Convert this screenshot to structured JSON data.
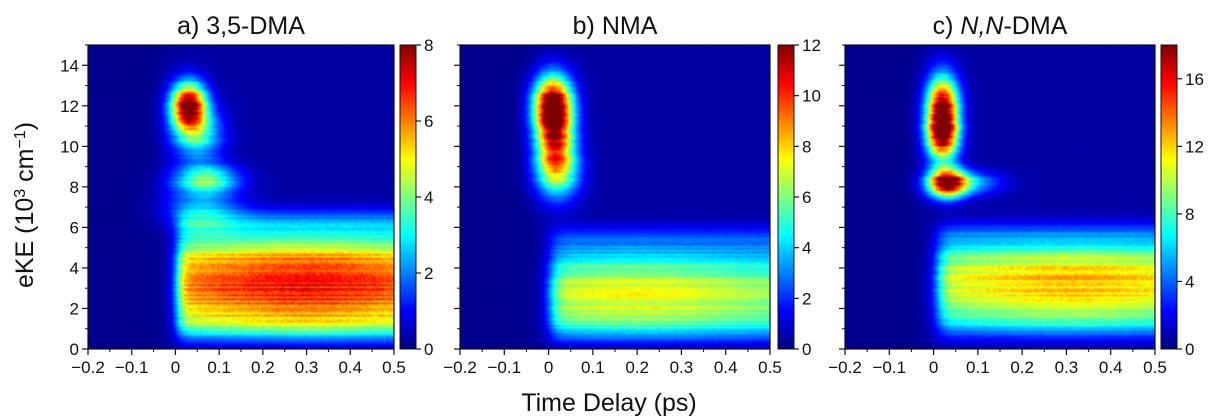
{
  "chart_data": {
    "type": "heatmap",
    "shared_xlabel": "Time Delay (ps)",
    "shared_ylabel": "eKE (10³ cm⁻¹)",
    "colormap": [
      "#00007f",
      "#0000ff",
      "#007fff",
      "#00ffff",
      "#7fff7f",
      "#ffff00",
      "#ff7f00",
      "#ff0000",
      "#7f0000"
    ],
    "panels": [
      {
        "title_prefix": "a) ",
        "title_italic": "",
        "title_suffix": "3,5-DMA",
        "xlim": [
          -0.2,
          0.5
        ],
        "ylim": [
          0,
          15
        ],
        "x_ticks": [
          -0.2,
          -0.1,
          0,
          0.1,
          0.2,
          0.3,
          0.4,
          0.5
        ],
        "x_tick_labels": [
          "−0.2",
          "−0.1",
          "0",
          "0.1",
          "0.2",
          "0.3",
          "0.4",
          "0.5"
        ],
        "y_ticks": [
          0,
          2,
          4,
          6,
          8,
          10,
          12,
          14
        ],
        "y_tick_labels": [
          "0",
          "2",
          "4",
          "6",
          "8",
          "10",
          "12",
          "14"
        ],
        "colorbar_range": [
          0,
          8
        ],
        "colorbar_ticks": [
          0,
          2,
          4,
          6,
          8
        ],
        "colorbar_tick_labels": [
          "0",
          "2",
          "4",
          "6",
          "8"
        ],
        "features": [
          {
            "x": 0.03,
            "y": 12.0,
            "sx": 0.028,
            "sy": 0.8,
            "amp": 7.8
          },
          {
            "x": 0.05,
            "y": 10.6,
            "sx": 0.04,
            "sy": 0.9,
            "amp": 3.0
          },
          {
            "x": 0.07,
            "y": 8.4,
            "sx": 0.05,
            "sy": 0.5,
            "amp": 3.5
          },
          {
            "x": 0.06,
            "y": 7.0,
            "sx": 0.06,
            "sy": 0.8,
            "amp": 1.8
          }
        ],
        "band": {
          "onset": 0.005,
          "rise": 0.025,
          "level": 6.6,
          "peak_time": 0.3,
          "low_eke": 0.6,
          "high_eke": 5.6,
          "center_eke": 3.2
        }
      },
      {
        "title_prefix": "b) ",
        "title_italic": "",
        "title_suffix": "NMA",
        "xlim": [
          -0.2,
          0.5
        ],
        "ylim": [
          0,
          15
        ],
        "x_ticks": [
          -0.2,
          -0.1,
          0,
          0.1,
          0.2,
          0.3,
          0.4,
          0.5
        ],
        "x_tick_labels": [
          "−0.2",
          "−0.1",
          "0",
          "0.1",
          "0.2",
          "0.3",
          "0.4",
          "0.5"
        ],
        "y_ticks": [
          0,
          2,
          4,
          6,
          8,
          10,
          12,
          14
        ],
        "y_tick_labels": [
          "0",
          "2",
          "4",
          "6",
          "8",
          "10",
          "12",
          "14"
        ],
        "colorbar_range": [
          0,
          12
        ],
        "colorbar_ticks": [
          0,
          2,
          4,
          6,
          8,
          10,
          12
        ],
        "colorbar_tick_labels": [
          "0",
          "2",
          "4",
          "6",
          "8",
          "10",
          "12"
        ],
        "features": [
          {
            "x": 0.01,
            "y": 12.0,
            "sx": 0.03,
            "sy": 1.0,
            "amp": 13.5
          },
          {
            "x": 0.015,
            "y": 10.0,
            "sx": 0.03,
            "sy": 1.0,
            "amp": 7.5
          },
          {
            "x": 0.02,
            "y": 8.6,
            "sx": 0.035,
            "sy": 0.9,
            "amp": 5.0
          }
        ],
        "band": {
          "onset": 0.005,
          "rise": 0.03,
          "level": 6.8,
          "peak_time": 0.2,
          "low_eke": 0.6,
          "high_eke": 4.8,
          "center_eke": 2.6
        }
      },
      {
        "title_prefix": "c) ",
        "title_italic": "N,N",
        "title_suffix": "-DMA",
        "xlim": [
          -0.2,
          0.5
        ],
        "ylim": [
          0,
          15
        ],
        "x_ticks": [
          -0.2,
          -0.1,
          0,
          0.1,
          0.2,
          0.3,
          0.4,
          0.5
        ],
        "x_tick_labels": [
          "−0.2",
          "−0.1",
          "0",
          "0.1",
          "0.2",
          "0.3",
          "0.4",
          "0.5"
        ],
        "y_ticks": [
          0,
          2,
          4,
          6,
          8,
          10,
          12,
          14
        ],
        "y_tick_labels": [
          "0",
          "2",
          "4",
          "6",
          "8",
          "10",
          "12",
          "14"
        ],
        "colorbar_range": [
          0,
          18
        ],
        "colorbar_ticks": [
          0,
          4,
          8,
          12,
          16
        ],
        "colorbar_tick_labels": [
          "0",
          "4",
          "8",
          "12",
          "16"
        ],
        "features": [
          {
            "x": 0.02,
            "y": 12.0,
            "sx": 0.025,
            "sy": 1.1,
            "amp": 15.0
          },
          {
            "x": 0.02,
            "y": 10.5,
            "sx": 0.025,
            "sy": 0.9,
            "amp": 14.0
          },
          {
            "x": 0.03,
            "y": 8.2,
            "sx": 0.03,
            "sy": 0.5,
            "amp": 17.0
          },
          {
            "x": 0.08,
            "y": 8.2,
            "sx": 0.05,
            "sy": 0.4,
            "amp": 5.0
          }
        ],
        "band": {
          "onset": 0.01,
          "rise": 0.03,
          "level": 12.0,
          "peak_time": 0.32,
          "low_eke": 0.8,
          "high_eke": 5.0,
          "center_eke": 3.6
        }
      }
    ]
  }
}
